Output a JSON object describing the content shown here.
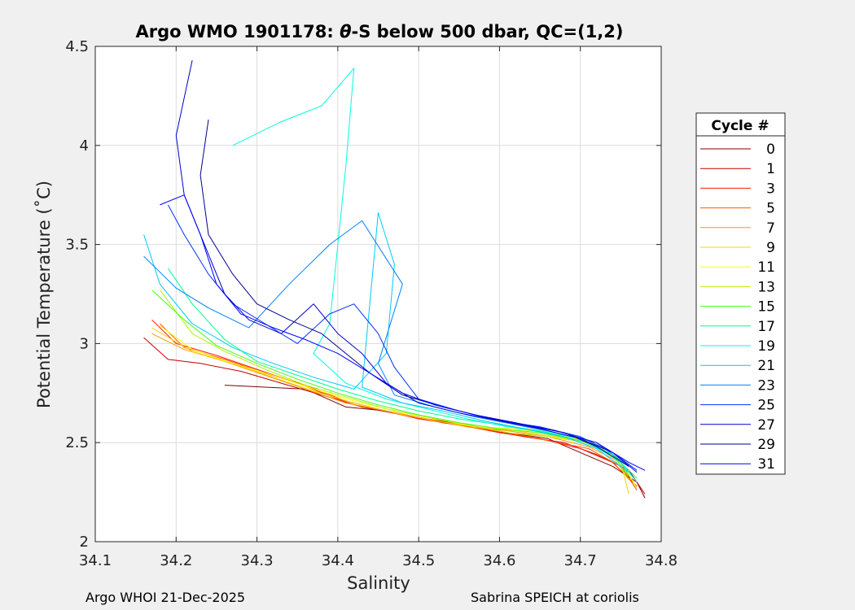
{
  "chart_data": {
    "type": "line",
    "title_prefix": "Argo WMO 1901178: ",
    "title_theta": "θ",
    "title_suffix": "-S below 500 dbar,  QC=(1,2)",
    "xlabel": "Salinity",
    "ylabel": "Potential Temperature (˚C)",
    "xlim": [
      34.1,
      34.8
    ],
    "ylim": [
      2.0,
      4.5
    ],
    "xticks": [
      34.1,
      34.2,
      34.3,
      34.4,
      34.5,
      34.6,
      34.7,
      34.8
    ],
    "xtick_labels": [
      "34.1",
      "34.2",
      "34.3",
      "34.4",
      "34.5",
      "34.6",
      "34.7",
      "34.8"
    ],
    "yticks": [
      2.0,
      2.5,
      3.0,
      3.5,
      4.0,
      4.5
    ],
    "ytick_labels": [
      "2",
      "2.5",
      "3",
      "3.5",
      "4",
      "4.5"
    ],
    "grid": true,
    "legend_title": "Cycle #",
    "legend_position": "outside-right",
    "series": [
      {
        "name": "0",
        "color": "#800000",
        "values": [
          [
            34.26,
            2.79
          ],
          [
            34.31,
            2.78
          ],
          [
            34.36,
            2.77
          ],
          [
            34.41,
            2.68
          ],
          [
            34.46,
            2.66
          ],
          [
            34.51,
            2.62
          ],
          [
            34.56,
            2.59
          ],
          [
            34.61,
            2.55
          ],
          [
            34.66,
            2.52
          ],
          [
            34.7,
            2.45
          ],
          [
            34.74,
            2.38
          ],
          [
            34.77,
            2.3
          ],
          [
            34.78,
            2.22
          ]
        ]
      },
      {
        "name": "1",
        "color": "#c40000",
        "values": [
          [
            34.16,
            3.03
          ],
          [
            34.19,
            2.92
          ],
          [
            34.23,
            2.9
          ],
          [
            34.28,
            2.86
          ],
          [
            34.33,
            2.8
          ],
          [
            34.38,
            2.74
          ],
          [
            34.43,
            2.68
          ],
          [
            34.48,
            2.64
          ],
          [
            34.53,
            2.6
          ],
          [
            34.58,
            2.57
          ],
          [
            34.63,
            2.53
          ],
          [
            34.68,
            2.5
          ],
          [
            34.72,
            2.44
          ],
          [
            34.76,
            2.36
          ],
          [
            34.78,
            2.24
          ]
        ]
      },
      {
        "name": "3",
        "color": "#ff1a00",
        "values": [
          [
            34.17,
            3.12
          ],
          [
            34.2,
            3.0
          ],
          [
            34.25,
            2.94
          ],
          [
            34.3,
            2.87
          ],
          [
            34.35,
            2.8
          ],
          [
            34.4,
            2.72
          ],
          [
            34.45,
            2.67
          ],
          [
            34.5,
            2.62
          ],
          [
            34.55,
            2.59
          ],
          [
            34.6,
            2.55
          ],
          [
            34.65,
            2.52
          ],
          [
            34.7,
            2.47
          ],
          [
            34.74,
            2.4
          ],
          [
            34.77,
            2.28
          ]
        ]
      },
      {
        "name": "5",
        "color": "#ff5a00",
        "values": [
          [
            34.18,
            3.1
          ],
          [
            34.21,
            2.98
          ],
          [
            34.26,
            2.92
          ],
          [
            34.31,
            2.85
          ],
          [
            34.36,
            2.79
          ],
          [
            34.41,
            2.71
          ],
          [
            34.46,
            2.66
          ],
          [
            34.51,
            2.62
          ],
          [
            34.56,
            2.58
          ],
          [
            34.61,
            2.55
          ],
          [
            34.66,
            2.51
          ],
          [
            34.71,
            2.47
          ],
          [
            34.75,
            2.38
          ],
          [
            34.77,
            2.26
          ]
        ]
      },
      {
        "name": "7",
        "color": "#ff9800",
        "values": [
          [
            34.17,
            3.05
          ],
          [
            34.21,
            2.97
          ],
          [
            34.26,
            2.91
          ],
          [
            34.31,
            2.84
          ],
          [
            34.36,
            2.77
          ],
          [
            34.41,
            2.7
          ],
          [
            34.46,
            2.66
          ],
          [
            34.51,
            2.62
          ],
          [
            34.56,
            2.58
          ],
          [
            34.61,
            2.56
          ],
          [
            34.66,
            2.53
          ],
          [
            34.71,
            2.48
          ],
          [
            34.75,
            2.4
          ],
          [
            34.77,
            2.27
          ]
        ]
      },
      {
        "name": "9",
        "color": "#ffd000",
        "values": [
          [
            34.17,
            3.08
          ],
          [
            34.22,
            2.96
          ],
          [
            34.27,
            2.9
          ],
          [
            34.32,
            2.83
          ],
          [
            34.37,
            2.76
          ],
          [
            34.42,
            2.7
          ],
          [
            34.47,
            2.65
          ],
          [
            34.52,
            2.61
          ],
          [
            34.57,
            2.58
          ],
          [
            34.62,
            2.56
          ],
          [
            34.67,
            2.53
          ],
          [
            34.72,
            2.49
          ],
          [
            34.75,
            2.4
          ],
          [
            34.76,
            2.24
          ]
        ]
      },
      {
        "name": "11",
        "color": "#ffff00",
        "values": [
          [
            34.18,
            3.09
          ],
          [
            34.22,
            2.97
          ],
          [
            34.27,
            2.9
          ],
          [
            34.32,
            2.84
          ],
          [
            34.37,
            2.77
          ],
          [
            34.42,
            2.71
          ],
          [
            34.47,
            2.66
          ],
          [
            34.52,
            2.62
          ],
          [
            34.57,
            2.58
          ],
          [
            34.62,
            2.57
          ],
          [
            34.67,
            2.54
          ],
          [
            34.72,
            2.5
          ],
          [
            34.75,
            2.41
          ],
          [
            34.77,
            2.27
          ]
        ]
      },
      {
        "name": "13",
        "color": "#b8f000",
        "values": [
          [
            34.18,
            3.27
          ],
          [
            34.22,
            3.05
          ],
          [
            34.26,
            2.96
          ],
          [
            34.31,
            2.87
          ],
          [
            34.36,
            2.79
          ],
          [
            34.41,
            2.73
          ],
          [
            34.46,
            2.67
          ],
          [
            34.51,
            2.63
          ],
          [
            34.56,
            2.59
          ],
          [
            34.61,
            2.55
          ],
          [
            34.66,
            2.53
          ],
          [
            34.71,
            2.5
          ],
          [
            34.74,
            2.43
          ],
          [
            34.76,
            2.31
          ]
        ]
      },
      {
        "name": "15",
        "color": "#40ff10",
        "values": [
          [
            34.17,
            3.27
          ],
          [
            34.21,
            3.12
          ],
          [
            34.25,
            2.99
          ],
          [
            34.3,
            2.9
          ],
          [
            34.35,
            2.82
          ],
          [
            34.4,
            2.75
          ],
          [
            34.45,
            2.69
          ],
          [
            34.5,
            2.64
          ],
          [
            34.55,
            2.6
          ],
          [
            34.6,
            2.57
          ],
          [
            34.65,
            2.55
          ],
          [
            34.7,
            2.51
          ],
          [
            34.74,
            2.44
          ],
          [
            34.76,
            2.33
          ]
        ]
      },
      {
        "name": "17",
        "color": "#00ff90",
        "values": [
          [
            34.19,
            3.38
          ],
          [
            34.22,
            3.2
          ],
          [
            34.26,
            3.02
          ],
          [
            34.3,
            2.91
          ],
          [
            34.35,
            2.84
          ],
          [
            34.4,
            2.77
          ],
          [
            34.45,
            2.71
          ],
          [
            34.5,
            2.66
          ],
          [
            34.55,
            2.62
          ],
          [
            34.6,
            2.59
          ],
          [
            34.65,
            2.56
          ],
          [
            34.7,
            2.52
          ],
          [
            34.74,
            2.44
          ],
          [
            34.77,
            2.32
          ]
        ]
      },
      {
        "name": "19",
        "color": "#00ffe0",
        "values": [
          [
            34.27,
            4.0
          ],
          [
            34.33,
            4.12
          ],
          [
            34.38,
            4.2
          ],
          [
            34.42,
            4.39
          ],
          [
            34.41,
            3.9
          ],
          [
            34.4,
            3.5
          ],
          [
            34.39,
            3.1
          ],
          [
            34.37,
            2.95
          ],
          [
            34.41,
            2.8
          ],
          [
            34.46,
            2.72
          ],
          [
            34.51,
            2.67
          ],
          [
            34.56,
            2.62
          ],
          [
            34.61,
            2.58
          ],
          [
            34.66,
            2.55
          ],
          [
            34.71,
            2.5
          ],
          [
            34.75,
            2.4
          ],
          [
            34.77,
            2.3
          ]
        ]
      },
      {
        "name": "21",
        "color": "#00c8ff",
        "values": [
          [
            34.16,
            3.55
          ],
          [
            34.18,
            3.3
          ],
          [
            34.22,
            3.1
          ],
          [
            34.27,
            2.98
          ],
          [
            34.32,
            2.9
          ],
          [
            34.37,
            2.83
          ],
          [
            34.42,
            2.77
          ],
          [
            34.46,
            2.95
          ],
          [
            34.47,
            3.4
          ],
          [
            34.45,
            3.66
          ],
          [
            34.43,
            2.78
          ],
          [
            34.48,
            2.7
          ],
          [
            34.53,
            2.66
          ],
          [
            34.58,
            2.61
          ],
          [
            34.63,
            2.57
          ],
          [
            34.68,
            2.53
          ],
          [
            34.72,
            2.47
          ],
          [
            34.76,
            2.35
          ]
        ]
      },
      {
        "name": "23",
        "color": "#0080ff",
        "values": [
          [
            34.16,
            3.44
          ],
          [
            34.2,
            3.28
          ],
          [
            34.24,
            3.18
          ],
          [
            34.29,
            3.08
          ],
          [
            34.34,
            3.3
          ],
          [
            34.39,
            3.5
          ],
          [
            34.43,
            3.62
          ],
          [
            34.48,
            3.3
          ],
          [
            34.45,
            2.9
          ],
          [
            34.47,
            2.74
          ],
          [
            34.52,
            2.68
          ],
          [
            34.57,
            2.63
          ],
          [
            34.62,
            2.59
          ],
          [
            34.67,
            2.55
          ],
          [
            34.72,
            2.5
          ],
          [
            34.76,
            2.38
          ]
        ]
      },
      {
        "name": "25",
        "color": "#0030ff",
        "values": [
          [
            34.19,
            3.7
          ],
          [
            34.21,
            3.55
          ],
          [
            34.24,
            3.35
          ],
          [
            34.27,
            3.2
          ],
          [
            34.31,
            3.1
          ],
          [
            34.35,
            3.0
          ],
          [
            34.39,
            3.15
          ],
          [
            34.42,
            3.2
          ],
          [
            34.45,
            3.05
          ],
          [
            34.47,
            2.88
          ],
          [
            34.5,
            2.72
          ],
          [
            34.55,
            2.66
          ],
          [
            34.6,
            2.61
          ],
          [
            34.65,
            2.58
          ],
          [
            34.7,
            2.53
          ],
          [
            34.74,
            2.45
          ],
          [
            34.77,
            2.36
          ]
        ]
      },
      {
        "name": "27",
        "color": "#0000d0",
        "values": [
          [
            34.22,
            4.43
          ],
          [
            34.2,
            4.05
          ],
          [
            34.21,
            3.75
          ],
          [
            34.24,
            3.45
          ],
          [
            34.26,
            3.25
          ],
          [
            34.29,
            3.12
          ],
          [
            34.33,
            3.05
          ],
          [
            34.37,
            3.2
          ],
          [
            34.4,
            3.05
          ],
          [
            34.43,
            2.95
          ],
          [
            34.46,
            2.8
          ],
          [
            34.5,
            2.7
          ],
          [
            34.55,
            2.65
          ],
          [
            34.6,
            2.61
          ],
          [
            34.65,
            2.57
          ],
          [
            34.7,
            2.52
          ],
          [
            34.74,
            2.45
          ],
          [
            34.77,
            2.35
          ]
        ]
      },
      {
        "name": "29",
        "color": "#00008c",
        "values": [
          [
            34.24,
            4.13
          ],
          [
            34.23,
            3.85
          ],
          [
            34.24,
            3.55
          ],
          [
            34.27,
            3.35
          ],
          [
            34.3,
            3.2
          ],
          [
            34.34,
            3.12
          ],
          [
            34.38,
            3.05
          ],
          [
            34.41,
            2.95
          ],
          [
            34.44,
            2.85
          ],
          [
            34.48,
            2.74
          ],
          [
            34.53,
            2.68
          ],
          [
            34.58,
            2.63
          ],
          [
            34.63,
            2.59
          ],
          [
            34.68,
            2.55
          ],
          [
            34.72,
            2.48
          ],
          [
            34.76,
            2.38
          ]
        ]
      },
      {
        "name": "31",
        "color": "#0000ff",
        "values": [
          [
            34.18,
            3.7
          ],
          [
            34.21,
            3.75
          ],
          [
            34.23,
            3.55
          ],
          [
            34.25,
            3.3
          ],
          [
            34.28,
            3.15
          ],
          [
            34.32,
            3.08
          ],
          [
            34.36,
            3.02
          ],
          [
            34.4,
            2.95
          ],
          [
            34.44,
            2.85
          ],
          [
            34.48,
            2.75
          ],
          [
            34.52,
            2.69
          ],
          [
            34.57,
            2.64
          ],
          [
            34.62,
            2.6
          ],
          [
            34.67,
            2.56
          ],
          [
            34.72,
            2.5
          ],
          [
            34.76,
            2.4
          ],
          [
            34.78,
            2.36
          ]
        ]
      }
    ]
  },
  "footer": {
    "left": "Argo WHOI 21-Dec-2025",
    "right": "Sabrina SPEICH at coriolis"
  }
}
